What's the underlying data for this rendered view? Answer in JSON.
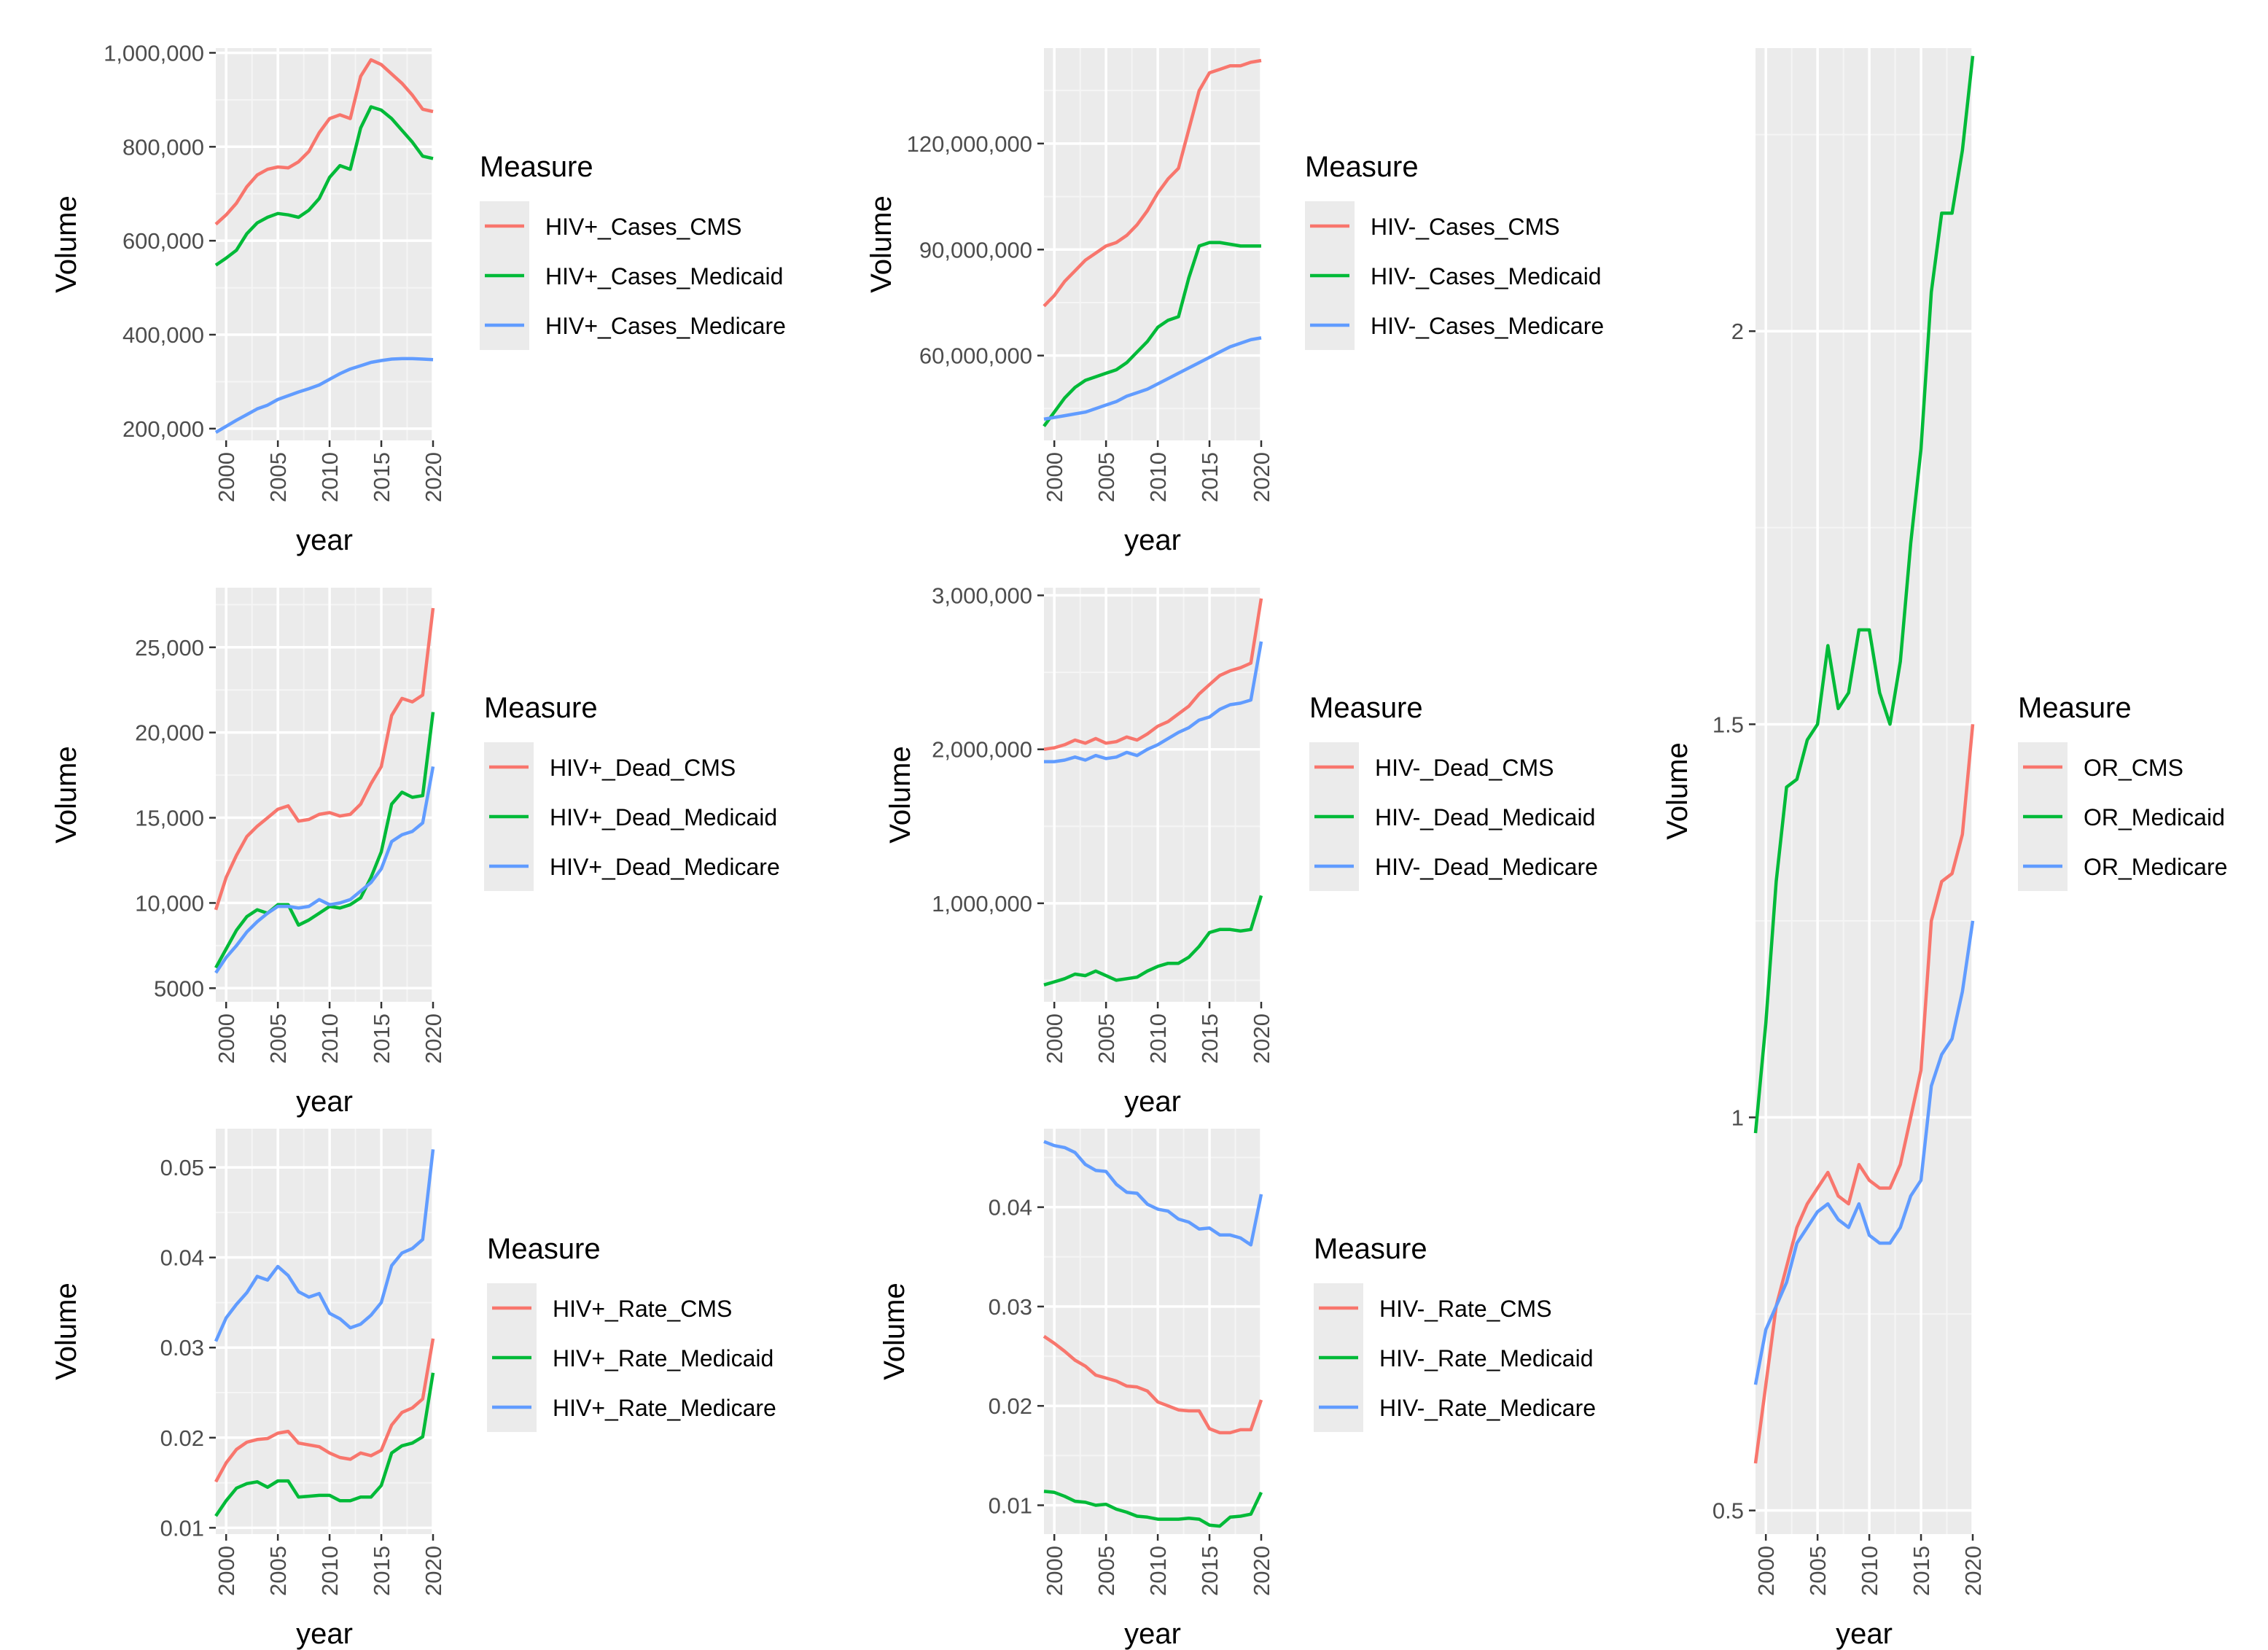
{
  "colors": {
    "CMS": "#F8766D",
    "Medicaid": "#00BA38",
    "Medicare": "#619CFF",
    "panel_bg": "#EBEBEB",
    "grid_major": "#FFFFFF",
    "grid_minor": "#F5F5F5"
  },
  "chart_data": [
    {
      "id": "hiv-pos-cases",
      "type": "line",
      "xlabel": "year",
      "ylabel": "Volume",
      "xlim": [
        1999,
        2020
      ],
      "ylim": [
        175000,
        1010000
      ],
      "x_ticks": [
        2000,
        2005,
        2010,
        2015,
        2020
      ],
      "x_tick_labels": [
        "2000",
        "2005",
        "2010",
        "2015",
        "2020"
      ],
      "y_ticks": [
        200000,
        400000,
        600000,
        800000,
        1000000
      ],
      "y_tick_labels": [
        "200,000",
        "400,000",
        "600,000",
        "800,000",
        "1,000,000"
      ],
      "legend_title": "Measure",
      "legend_position": "right",
      "x": [
        1999,
        2000,
        2001,
        2002,
        2003,
        2004,
        2005,
        2006,
        2007,
        2008,
        2009,
        2010,
        2011,
        2012,
        2013,
        2014,
        2015,
        2016,
        2017,
        2018,
        2019,
        2020
      ],
      "series": [
        {
          "name": "HIV+_Cases_CMS",
          "color": "#F8766D",
          "values": [
            635000,
            655000,
            680000,
            715000,
            740000,
            752000,
            757000,
            755000,
            768000,
            790000,
            830000,
            860000,
            868000,
            860000,
            950000,
            985000,
            975000,
            955000,
            935000,
            910000,
            880000,
            875000
          ]
        },
        {
          "name": "HIV+_Cases_Medicaid",
          "color": "#00BA38",
          "values": [
            548000,
            563000,
            580000,
            615000,
            638000,
            650000,
            658000,
            655000,
            650000,
            665000,
            690000,
            735000,
            760000,
            752000,
            840000,
            885000,
            878000,
            860000,
            835000,
            810000,
            780000,
            775000
          ]
        },
        {
          "name": "HIV+_Cases_Medicare",
          "color": "#619CFF",
          "values": [
            192000,
            205000,
            218000,
            230000,
            242000,
            250000,
            262000,
            270000,
            278000,
            285000,
            293000,
            305000,
            317000,
            327000,
            334000,
            341000,
            345000,
            348000,
            349000,
            349000,
            348000,
            347000
          ]
        }
      ]
    },
    {
      "id": "hiv-neg-cases",
      "type": "line",
      "xlabel": "year",
      "ylabel": "Volume",
      "xlim": [
        1999,
        2020
      ],
      "ylim": [
        36000000,
        147000000
      ],
      "x_ticks": [
        2000,
        2005,
        2010,
        2015,
        2020
      ],
      "x_tick_labels": [
        "2000",
        "2005",
        "2010",
        "2015",
        "2020"
      ],
      "y_ticks": [
        60000000,
        90000000,
        120000000
      ],
      "y_tick_labels": [
        "60,000,000",
        "90,000,000",
        "120,000,000"
      ],
      "legend_title": "Measure",
      "legend_position": "right",
      "x": [
        1999,
        2000,
        2001,
        2002,
        2003,
        2004,
        2005,
        2006,
        2007,
        2008,
        2009,
        2010,
        2011,
        2012,
        2013,
        2014,
        2015,
        2016,
        2017,
        2018,
        2019,
        2020
      ],
      "series": [
        {
          "name": "HIV-_Cases_CMS",
          "color": "#F8766D",
          "values": [
            74000000,
            77000000,
            81000000,
            84000000,
            87000000,
            89000000,
            91000000,
            92000000,
            94000000,
            97000000,
            101000000,
            106000000,
            110000000,
            113000000,
            124000000,
            135000000,
            140000000,
            141000000,
            142000000,
            142000000,
            143000000,
            143500000
          ]
        },
        {
          "name": "HIV-_Cases_Medicaid",
          "color": "#00BA38",
          "values": [
            40000000,
            44000000,
            48000000,
            51000000,
            53000000,
            54000000,
            55000000,
            56000000,
            58000000,
            61000000,
            64000000,
            68000000,
            70000000,
            71000000,
            82000000,
            91000000,
            92000000,
            92000000,
            91500000,
            91000000,
            91000000,
            91000000
          ]
        },
        {
          "name": "HIV-_Cases_Medicare",
          "color": "#619CFF",
          "values": [
            42000000,
            42500000,
            43000000,
            43500000,
            44000000,
            45000000,
            46000000,
            47000000,
            48500000,
            49500000,
            50500000,
            52000000,
            53500000,
            55000000,
            56500000,
            58000000,
            59500000,
            61000000,
            62500000,
            63500000,
            64500000,
            65000000
          ]
        }
      ]
    },
    {
      "id": "hiv-pos-dead",
      "type": "line",
      "xlabel": "year",
      "ylabel": "Volume",
      "xlim": [
        1999,
        2020
      ],
      "ylim": [
        4200,
        28500
      ],
      "x_ticks": [
        2000,
        2005,
        2010,
        2015,
        2020
      ],
      "x_tick_labels": [
        "2000",
        "2005",
        "2010",
        "2015",
        "2020"
      ],
      "y_ticks": [
        5000,
        10000,
        15000,
        20000,
        25000
      ],
      "y_tick_labels": [
        "5000",
        "10,000",
        "15,000",
        "20,000",
        "25,000"
      ],
      "legend_title": "Measure",
      "legend_position": "right",
      "x": [
        1999,
        2000,
        2001,
        2002,
        2003,
        2004,
        2005,
        2006,
        2007,
        2008,
        2009,
        2010,
        2011,
        2012,
        2013,
        2014,
        2015,
        2016,
        2017,
        2018,
        2019,
        2020
      ],
      "series": [
        {
          "name": "HIV+_Dead_CMS",
          "color": "#F8766D",
          "values": [
            9600,
            11500,
            12800,
            13900,
            14500,
            15000,
            15500,
            15700,
            14800,
            14900,
            15200,
            15300,
            15100,
            15200,
            15800,
            17000,
            18000,
            21000,
            22000,
            21800,
            22200,
            27300
          ]
        },
        {
          "name": "HIV+_Dead_Medicaid",
          "color": "#00BA38",
          "values": [
            6200,
            7300,
            8400,
            9200,
            9600,
            9400,
            9900,
            9900,
            8700,
            9000,
            9400,
            9800,
            9700,
            9900,
            10300,
            11500,
            13000,
            15800,
            16500,
            16200,
            16300,
            21200
          ]
        },
        {
          "name": "HIV+_Dead_Medicare",
          "color": "#619CFF",
          "values": [
            5900,
            6800,
            7500,
            8300,
            8900,
            9400,
            9800,
            9800,
            9700,
            9800,
            10200,
            9900,
            10000,
            10200,
            10700,
            11200,
            12000,
            13600,
            14000,
            14200,
            14700,
            18000
          ]
        }
      ]
    },
    {
      "id": "hiv-neg-dead",
      "type": "line",
      "xlabel": "year",
      "ylabel": "Volume",
      "xlim": [
        1999,
        2020
      ],
      "ylim": [
        360000,
        3050000
      ],
      "x_ticks": [
        2000,
        2005,
        2010,
        2015,
        2020
      ],
      "x_tick_labels": [
        "2000",
        "2005",
        "2010",
        "2015",
        "2020"
      ],
      "y_ticks": [
        1000000,
        2000000,
        3000000
      ],
      "y_tick_labels": [
        "1,000,000",
        "2,000,000",
        "3,000,000"
      ],
      "legend_title": "Measure",
      "legend_position": "right",
      "x": [
        1999,
        2000,
        2001,
        2002,
        2003,
        2004,
        2005,
        2006,
        2007,
        2008,
        2009,
        2010,
        2011,
        2012,
        2013,
        2014,
        2015,
        2016,
        2017,
        2018,
        2019,
        2020
      ],
      "series": [
        {
          "name": "HIV-_Dead_CMS",
          "color": "#F8766D",
          "values": [
            2000000,
            2010000,
            2030000,
            2060000,
            2040000,
            2070000,
            2040000,
            2050000,
            2080000,
            2060000,
            2100000,
            2150000,
            2180000,
            2230000,
            2280000,
            2360000,
            2420000,
            2480000,
            2510000,
            2530000,
            2560000,
            2980000
          ]
        },
        {
          "name": "HIV-_Dead_Medicaid",
          "color": "#00BA38",
          "values": [
            470000,
            490000,
            510000,
            540000,
            530000,
            560000,
            530000,
            500000,
            510000,
            520000,
            560000,
            590000,
            610000,
            610000,
            650000,
            720000,
            810000,
            830000,
            830000,
            820000,
            830000,
            1050000
          ]
        },
        {
          "name": "HIV-_Dead_Medicare",
          "color": "#619CFF",
          "values": [
            1920000,
            1920000,
            1930000,
            1950000,
            1930000,
            1960000,
            1940000,
            1950000,
            1980000,
            1960000,
            2000000,
            2030000,
            2070000,
            2110000,
            2140000,
            2190000,
            2210000,
            2260000,
            2290000,
            2300000,
            2320000,
            2700000
          ]
        }
      ]
    },
    {
      "id": "hiv-pos-rate",
      "type": "line",
      "xlabel": "year",
      "ylabel": "Volume",
      "xlim": [
        1999,
        2020
      ],
      "ylim": [
        0.0093,
        0.0543
      ],
      "x_ticks": [
        2000,
        2005,
        2010,
        2015,
        2020
      ],
      "x_tick_labels": [
        "2000",
        "2005",
        "2010",
        "2015",
        "2020"
      ],
      "y_ticks": [
        0.01,
        0.02,
        0.03,
        0.04,
        0.05
      ],
      "y_tick_labels": [
        "0.01",
        "0.02",
        "0.03",
        "0.04",
        "0.05"
      ],
      "legend_title": "Measure",
      "legend_position": "right",
      "x": [
        1999,
        2000,
        2001,
        2002,
        2003,
        2004,
        2005,
        2006,
        2007,
        2008,
        2009,
        2010,
        2011,
        2012,
        2013,
        2014,
        2015,
        2016,
        2017,
        2018,
        2019,
        2020
      ],
      "series": [
        {
          "name": "HIV+_Rate_CMS",
          "color": "#F8766D",
          "values": [
            0.0151,
            0.0172,
            0.0187,
            0.0195,
            0.0198,
            0.0199,
            0.0205,
            0.0207,
            0.0194,
            0.0192,
            0.019,
            0.0183,
            0.0178,
            0.0176,
            0.0183,
            0.018,
            0.0186,
            0.0214,
            0.0228,
            0.0233,
            0.0243,
            0.031
          ]
        },
        {
          "name": "HIV+_Rate_Medicaid",
          "color": "#00BA38",
          "values": [
            0.0113,
            0.013,
            0.0144,
            0.0149,
            0.0151,
            0.0145,
            0.0152,
            0.0152,
            0.0134,
            0.0135,
            0.0136,
            0.0136,
            0.013,
            0.013,
            0.0134,
            0.0134,
            0.0147,
            0.0183,
            0.0191,
            0.0194,
            0.0201,
            0.0272
          ]
        },
        {
          "name": "HIV+_Rate_Medicare",
          "color": "#619CFF",
          "values": [
            0.0307,
            0.0333,
            0.0348,
            0.0361,
            0.0379,
            0.0375,
            0.039,
            0.038,
            0.0362,
            0.0356,
            0.036,
            0.0338,
            0.0332,
            0.0322,
            0.0326,
            0.0336,
            0.035,
            0.0391,
            0.0405,
            0.041,
            0.042,
            0.052
          ]
        }
      ]
    },
    {
      "id": "hiv-neg-rate",
      "type": "line",
      "xlabel": "year",
      "ylabel": "Volume",
      "xlim": [
        1999,
        2020
      ],
      "ylim": [
        0.0071,
        0.0479
      ],
      "x_ticks": [
        2000,
        2005,
        2010,
        2015,
        2020
      ],
      "x_tick_labels": [
        "2000",
        "2005",
        "2010",
        "2015",
        "2020"
      ],
      "y_ticks": [
        0.01,
        0.02,
        0.03,
        0.04
      ],
      "y_tick_labels": [
        "0.01",
        "0.02",
        "0.03",
        "0.04"
      ],
      "legend_title": "Measure",
      "legend_position": "right",
      "x": [
        1999,
        2000,
        2001,
        2002,
        2003,
        2004,
        2005,
        2006,
        2007,
        2008,
        2009,
        2010,
        2011,
        2012,
        2013,
        2014,
        2015,
        2016,
        2017,
        2018,
        2019,
        2020
      ],
      "series": [
        {
          "name": "HIV-_Rate_CMS",
          "color": "#F8766D",
          "values": [
            0.027,
            0.0263,
            0.0255,
            0.0246,
            0.024,
            0.0231,
            0.0228,
            0.0225,
            0.022,
            0.0219,
            0.0215,
            0.0204,
            0.02,
            0.0196,
            0.0195,
            0.0195,
            0.0177,
            0.0173,
            0.0173,
            0.0176,
            0.0176,
            0.0206
          ]
        },
        {
          "name": "HIV-_Rate_Medicaid",
          "color": "#00BA38",
          "values": [
            0.0114,
            0.0113,
            0.0109,
            0.0104,
            0.0103,
            0.01,
            0.0101,
            0.0096,
            0.0093,
            0.0089,
            0.0088,
            0.0086,
            0.0086,
            0.0086,
            0.0087,
            0.0086,
            0.008,
            0.0079,
            0.0088,
            0.0089,
            0.0091,
            0.0113
          ]
        },
        {
          "name": "HIV-_Rate_Medicare",
          "color": "#619CFF",
          "values": [
            0.0466,
            0.0462,
            0.046,
            0.0455,
            0.0443,
            0.0437,
            0.0436,
            0.0423,
            0.0415,
            0.0414,
            0.0403,
            0.0398,
            0.0396,
            0.0388,
            0.0385,
            0.0378,
            0.0379,
            0.0372,
            0.0372,
            0.0369,
            0.0362,
            0.0413
          ]
        }
      ]
    },
    {
      "id": "odds-ratio",
      "type": "line",
      "xlabel": "year",
      "ylabel": "Volume",
      "xlim": [
        1999,
        2020
      ],
      "ylim": [
        0.47,
        2.36
      ],
      "x_ticks": [
        2000,
        2005,
        2010,
        2015,
        2020
      ],
      "x_tick_labels": [
        "2000",
        "2005",
        "2010",
        "2015",
        "2020"
      ],
      "y_ticks": [
        0.5,
        1.0,
        1.5,
        2.0
      ],
      "y_tick_labels": [
        "0.5",
        "1",
        "1.5",
        "2"
      ],
      "legend_title": "Measure",
      "legend_position": "right",
      "x": [
        1999,
        2000,
        2001,
        2002,
        2003,
        2004,
        2005,
        2006,
        2007,
        2008,
        2009,
        2010,
        2011,
        2012,
        2013,
        2014,
        2015,
        2016,
        2017,
        2018,
        2019,
        2020
      ],
      "series": [
        {
          "name": "OR_CMS",
          "color": "#F8766D",
          "values": [
            0.56,
            0.66,
            0.76,
            0.81,
            0.86,
            0.89,
            0.91,
            0.93,
            0.9,
            0.89,
            0.94,
            0.92,
            0.91,
            0.91,
            0.94,
            1.0,
            1.06,
            1.25,
            1.3,
            1.31,
            1.36,
            1.5
          ]
        },
        {
          "name": "OR_Medicaid",
          "color": "#00BA38",
          "values": [
            0.98,
            1.12,
            1.3,
            1.42,
            1.43,
            1.48,
            1.5,
            1.6,
            1.52,
            1.54,
            1.62,
            1.62,
            1.54,
            1.5,
            1.58,
            1.73,
            1.85,
            2.05,
            2.15,
            2.15,
            2.23,
            2.35
          ]
        },
        {
          "name": "OR_Medicare",
          "color": "#619CFF",
          "values": [
            0.66,
            0.73,
            0.76,
            0.79,
            0.84,
            0.86,
            0.88,
            0.89,
            0.87,
            0.86,
            0.89,
            0.85,
            0.84,
            0.84,
            0.86,
            0.9,
            0.92,
            1.04,
            1.08,
            1.1,
            1.16,
            1.25
          ]
        }
      ]
    }
  ]
}
